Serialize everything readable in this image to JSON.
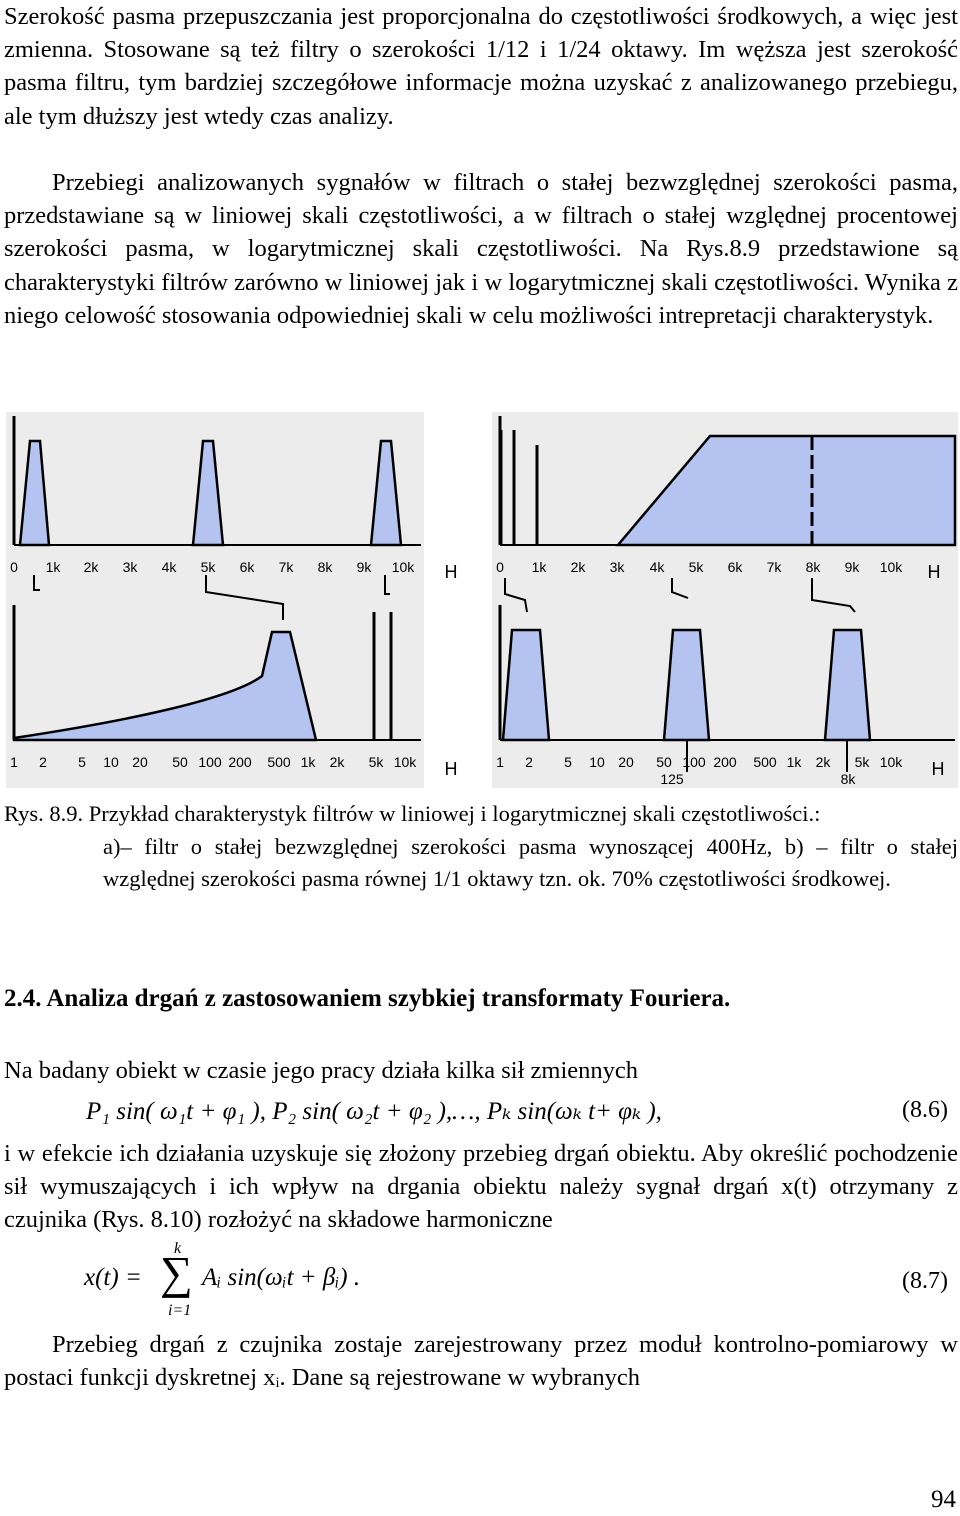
{
  "paragraph1": "Szerokość pasma przepuszczania jest proporcjonalna do częstotliwości środkowych, a więc jest zmienna. Stosowane są też filtry o szerokości 1/12 i 1/24 oktawy. Im węższa jest szerokość pasma filtru, tym bardziej szczegółowe informacje można uzyskać z analizowanego przebiegu, ale tym dłuższy jest wtedy czas analizy.",
  "paragraph2": "Przebiegi analizowanych sygnałów w filtrach o stałej bezwzględnej szerokości pasma, przedstawiane są w liniowej skali częstotliwości, a w filtrach o stałej względnej procentowej szerokości pasma, w logarytmicznej skali częstotliwości. Na Rys.8.9 przedstawione są charakterystyki filtrów zarówno w liniowej jak i w logarytmicznej skali częstotliwości. Wynika z niego celowość stosowania odpowiedniej skali w celu możliwości intrepretacji charakterystyk.",
  "figure": {
    "label_a": "a)",
    "label_b": "b)",
    "lin_ticks": [
      "0",
      "1k",
      "2k",
      "3k",
      "4k",
      "5k",
      "6k",
      "7k",
      "8k",
      "9k",
      "10k"
    ],
    "log_ticks": [
      "1",
      "2",
      "5",
      "10",
      "20",
      "50",
      "100",
      "200",
      "500",
      "1k",
      "2k",
      "5k",
      "10k"
    ],
    "unit": "H",
    "extra_label_125": "125",
    "extra_label_8k": "8k",
    "fill_color": "#b4c3ef",
    "axis_color": "#000000"
  },
  "caption": {
    "head": "Rys. 8.9. Przykład charakterystyk filtrów w liniowej i logarytmicznej skali częstotliwości.:",
    "body": "a)– filtr o stałej bezwzględnej szerokości pasma wynoszącej 400Hz, b) – filtr o stałej względnej szerokości pasma równej 1/1 oktawy tzn. ok. 70% częstotliwości środkowej."
  },
  "section_title": "2.4. Analiza drgań z zastosowaniem szybkiej transformaty Fouriera.",
  "paragraph3": "Na badany obiekt w czasie jego pracy działa kilka sił zmiennych",
  "formula_8_6": "P₁ sin( ω₁t + φ₁ ),  P₂ sin( ω₂t + φ₂ ),…, Pₖ sin(ωₖ t+ φₖ ),",
  "eq_num_8_6": "(8.6)",
  "paragraph4": "i w efekcie ich działania uzyskuje się złożony przebieg drgań obiektu. Aby określić pochodzenie sił wymuszających i ich wpływ na drgania obiektu należy sygnał drgań x(t) otrzymany z czujnika (Rys. 8.10) rozłożyć na składowe harmoniczne",
  "formula_8_7_lhs": "x(t) =",
  "formula_8_7_sum_top": "k",
  "formula_8_7_sum_bottom": "i=1",
  "formula_8_7_rhs": "Aᵢ sin(ωᵢt + βᵢ) .",
  "eq_num_8_7": "(8.7)",
  "paragraph5": "Przebieg drgań z czujnika zostaje zarejestrowany przez moduł kontrolno-pomiarowy w postaci funkcji dyskretnej xᵢ. Dane są rejestrowane w wybranych",
  "page_number": "94"
}
